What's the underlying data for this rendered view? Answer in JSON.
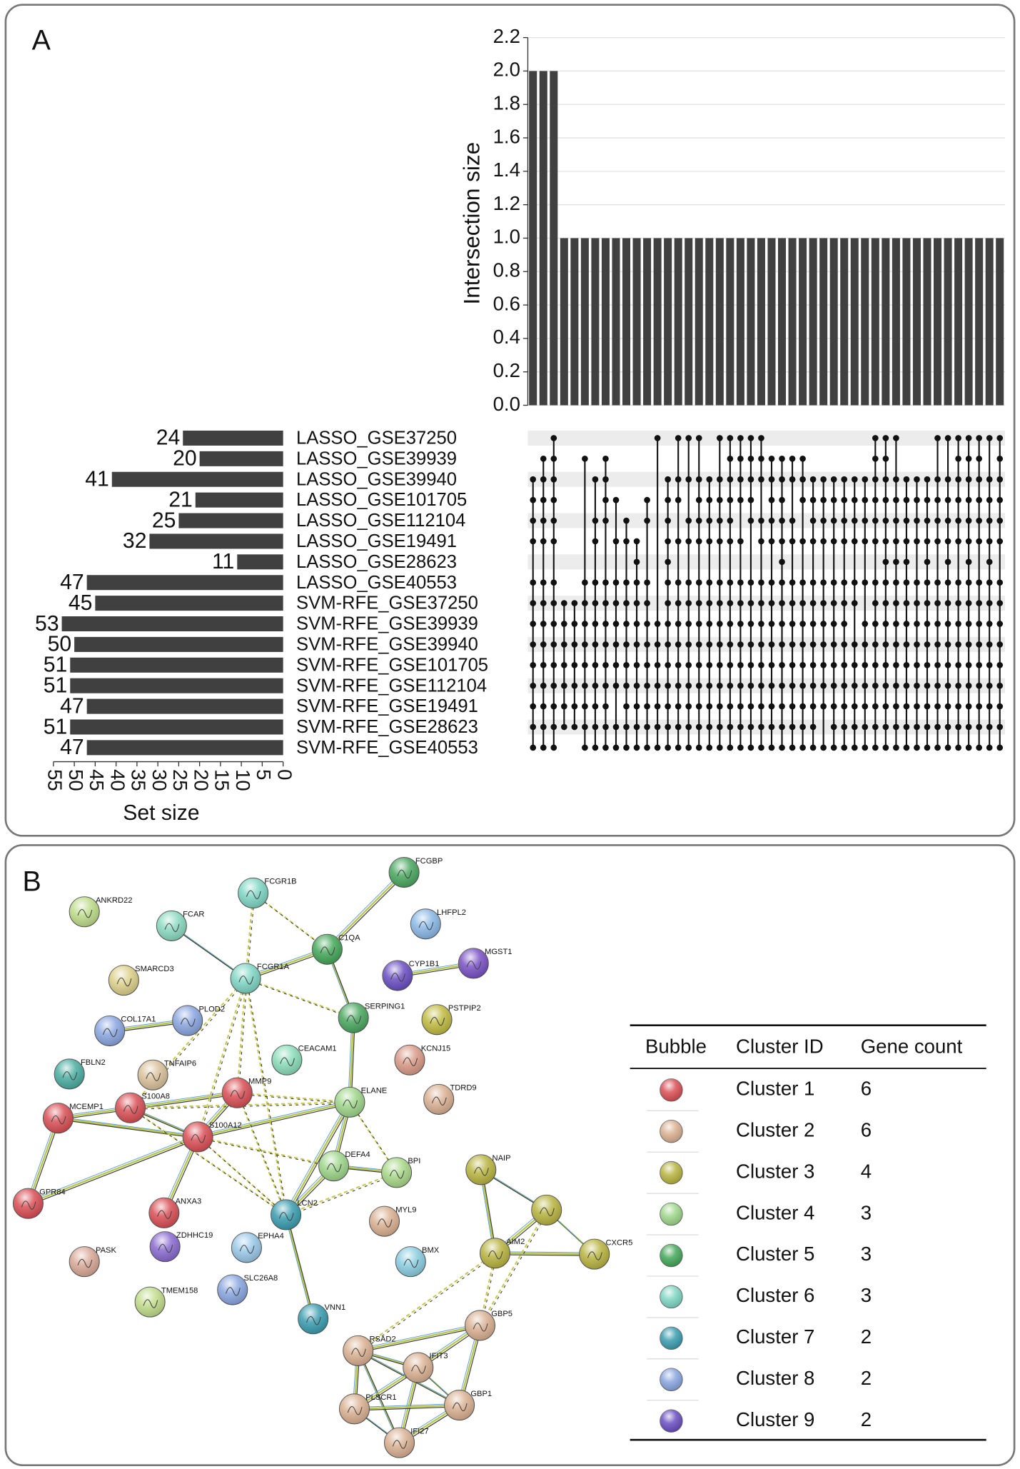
{
  "chart_data": {
    "type": "upset",
    "ylabel": "Intersection size",
    "xlabel": "Set size",
    "color": "#404040",
    "grid": true,
    "ylim": [
      0,
      2.2
    ],
    "yticks": [
      {
        "value": 0,
        "label": "0.0"
      },
      0.2,
      0.4,
      0.6,
      0.8,
      {
        "value": 1,
        "label": "1.0"
      },
      1.2,
      1.4,
      1.6,
      1.8,
      {
        "value": 2,
        "label": "2.0"
      },
      2.2
    ],
    "values": [
      2,
      2,
      2,
      1,
      1,
      1,
      1,
      1,
      1,
      1,
      1,
      1,
      1,
      1,
      1,
      1,
      1,
      1,
      1,
      1,
      1,
      1,
      1,
      1,
      1,
      1,
      1,
      1,
      1,
      1,
      1,
      1,
      1,
      1,
      1,
      1,
      1,
      1,
      1,
      1,
      1,
      1,
      1,
      1,
      1,
      1
    ],
    "sets": [
      "LASSO_GSE37250",
      "LASSO_GSE39939",
      "LASSO_GSE39940",
      "LASSO_GSE101705",
      "LASSO_GSE112104",
      "LASSO_GSE19491",
      "LASSO_GSE28623",
      "LASSO_GSE40553",
      "SVM-RFE_GSE37250",
      "SVM-RFE_GSE39939",
      "SVM-RFE_GSE39940",
      "SVM-RFE_GSE101705",
      "SVM-RFE_GSE112104",
      "SVM-RFE_GSE19491",
      "SVM-RFE_GSE28623",
      "SVM-RFE_GSE40553"
    ],
    "set_sizes": [
      24,
      20,
      41,
      21,
      25,
      32,
      11,
      47,
      45,
      53,
      50,
      51,
      51,
      47,
      51,
      47
    ],
    "xlim": [
      0,
      55
    ],
    "xticks": [
      0,
      5,
      10,
      15,
      20,
      25,
      30,
      35,
      40,
      45,
      50,
      55
    ],
    "intersections": [
      [
        2,
        3,
        4,
        5,
        7,
        8,
        9,
        10,
        11,
        12,
        13,
        14,
        15
      ],
      [
        1,
        2,
        3,
        4,
        5,
        7,
        8,
        9,
        10,
        11,
        12,
        13,
        14,
        15
      ],
      [
        0,
        1,
        2,
        3,
        4,
        5,
        7,
        8,
        9,
        10,
        11,
        12,
        13,
        14,
        15
      ],
      [
        8,
        9,
        10,
        11,
        12,
        13,
        14
      ],
      [
        8,
        9,
        10,
        11,
        12,
        13,
        14
      ],
      [
        1,
        7,
        8,
        9,
        10,
        11,
        12,
        13,
        14,
        15
      ],
      [
        2,
        4,
        5,
        7,
        8,
        9,
        10,
        11,
        12,
        13,
        14,
        15
      ],
      [
        1,
        2,
        3,
        4,
        7,
        8,
        9,
        10,
        11,
        12,
        13,
        14,
        15
      ],
      [
        3,
        5,
        7,
        8,
        9,
        10,
        11,
        12,
        14,
        15
      ],
      [
        4,
        5,
        7,
        8,
        9,
        10,
        11,
        12,
        13,
        14,
        15
      ],
      [
        5,
        6,
        7,
        8,
        9,
        10,
        11,
        12,
        13,
        14,
        15
      ],
      [
        3,
        4,
        7,
        8,
        9,
        10,
        11,
        12,
        13,
        14,
        15
      ],
      [
        0,
        9,
        10,
        11,
        12,
        13,
        14,
        15
      ],
      [
        2,
        3,
        4,
        5,
        6,
        7,
        8,
        9,
        10,
        11,
        12,
        13,
        14,
        15
      ],
      [
        0,
        2,
        3,
        5,
        7,
        8,
        9,
        10,
        11,
        12,
        13,
        14,
        15
      ],
      [
        0,
        2,
        4,
        5,
        7,
        8,
        9,
        10,
        11,
        12,
        13,
        14,
        15
      ],
      [
        0,
        2,
        3,
        4,
        5,
        7,
        8,
        9,
        10,
        11,
        12,
        13,
        14,
        15
      ],
      [
        2,
        3,
        4,
        5,
        7,
        8,
        9,
        10,
        11,
        12,
        13,
        14,
        15
      ],
      [
        0,
        2,
        3,
        4,
        5,
        7,
        8,
        9,
        10,
        11,
        12,
        13,
        14,
        15
      ],
      [
        0,
        1,
        2,
        3,
        4,
        5,
        7,
        8,
        9,
        10,
        11,
        12,
        13,
        14,
        15
      ],
      [
        0,
        1,
        2,
        3,
        5,
        7,
        8,
        9,
        10,
        11,
        12,
        13,
        14,
        15
      ],
      [
        0,
        1,
        2,
        3,
        4,
        7,
        8,
        9,
        10,
        11,
        12,
        13,
        14,
        15
      ],
      [
        0,
        1,
        2,
        4,
        5,
        7,
        8,
        9,
        10,
        11,
        12,
        13,
        14,
        15
      ],
      [
        1,
        2,
        3,
        4,
        5,
        7,
        8,
        9,
        10,
        11,
        12,
        13,
        14,
        15
      ],
      [
        1,
        2,
        3,
        4,
        5,
        6,
        7,
        8,
        9,
        10,
        11,
        12,
        13,
        14,
        15
      ],
      [
        1,
        2,
        4,
        5,
        7,
        8,
        9,
        10,
        11,
        12,
        13,
        14,
        15
      ],
      [
        1,
        2,
        3,
        5,
        7,
        8,
        9,
        10,
        11,
        12,
        13,
        14,
        15
      ],
      [
        2,
        3,
        4,
        5,
        7,
        8,
        9,
        10,
        11,
        12,
        13,
        14,
        15
      ],
      [
        2,
        3,
        4,
        5,
        7,
        8,
        9,
        10,
        11,
        12,
        13,
        15
      ],
      [
        2,
        3,
        4,
        5,
        7,
        8,
        9,
        10,
        11,
        12,
        13,
        14,
        15
      ],
      [
        2,
        3,
        4,
        5,
        7,
        8,
        9,
        10,
        11,
        12,
        13,
        14,
        15
      ],
      [
        2,
        3,
        4,
        5,
        7,
        8,
        10,
        11,
        12,
        13,
        14,
        15
      ],
      [
        2,
        3,
        4,
        5,
        7,
        9,
        10,
        11,
        12,
        13,
        14,
        15
      ],
      [
        0,
        1,
        2,
        3,
        4,
        5,
        7,
        8,
        9,
        10,
        11,
        12,
        13,
        14,
        15
      ],
      [
        0,
        1,
        2,
        3,
        4,
        5,
        6,
        7,
        8,
        9,
        10,
        11,
        12,
        13,
        14,
        15
      ],
      [
        0,
        2,
        3,
        4,
        5,
        6,
        7,
        8,
        9,
        10,
        11,
        12,
        13,
        14,
        15
      ],
      [
        2,
        3,
        4,
        5,
        6,
        7,
        8,
        9,
        10,
        11,
        12,
        13,
        14,
        15
      ],
      [
        2,
        3,
        4,
        5,
        7,
        8,
        9,
        10,
        11,
        12,
        13,
        14,
        15
      ],
      [
        2,
        3,
        4,
        5,
        6,
        7,
        8,
        9,
        10,
        11,
        12,
        13,
        14,
        15
      ],
      [
        0,
        2,
        3,
        4,
        5,
        7,
        8,
        9,
        10,
        11,
        12,
        13,
        14,
        15
      ],
      [
        0,
        2,
        3,
        4,
        5,
        6,
        7,
        8,
        9,
        10,
        11,
        12,
        13,
        14,
        15
      ],
      [
        0,
        1,
        2,
        3,
        4,
        5,
        7,
        8,
        9,
        10,
        11,
        12,
        13,
        14,
        15
      ],
      [
        0,
        1,
        2,
        3,
        4,
        5,
        6,
        7,
        8,
        9,
        10,
        11,
        12,
        13,
        14,
        15
      ],
      [
        0,
        1,
        2,
        3,
        4,
        5,
        7,
        8,
        9,
        10,
        11,
        12,
        13,
        14,
        15
      ],
      [
        0,
        2,
        3,
        4,
        5,
        6,
        7,
        8,
        9,
        10,
        11,
        12,
        13,
        14,
        15
      ],
      [
        0,
        1,
        2,
        3,
        4,
        5,
        7,
        8,
        9,
        10,
        11,
        12,
        13,
        14,
        15
      ]
    ]
  },
  "panel_labels": [
    "A",
    "B"
  ],
  "network": {
    "nodes": [
      {
        "label": "FCGBP",
        "color": "#4aa860"
      },
      {
        "label": "FCGR1B",
        "color": "#7ed6c4"
      },
      {
        "label": "ANKRD22",
        "color": "#bedc8a"
      },
      {
        "label": "FCAR",
        "color": "#8ad9c0"
      },
      {
        "label": "C1QA",
        "color": "#45a85a"
      },
      {
        "label": "LHFPL2",
        "color": "#8ab8e6"
      },
      {
        "label": "MGST1",
        "color": "#7a52c6"
      },
      {
        "label": "CYP1B1",
        "color": "#6a4fc2"
      },
      {
        "label": "SMARCD3",
        "color": "#ddd08a"
      },
      {
        "label": "FCGR1A",
        "color": "#7ed6c4"
      },
      {
        "label": "COL17A1",
        "color": "#8aa6e0"
      },
      {
        "label": "PLOD2",
        "color": "#8aa6e0"
      },
      {
        "label": "SERPING1",
        "color": "#4aa860"
      },
      {
        "label": "PSTPIP2",
        "color": "#c0bb40"
      },
      {
        "label": "CEACAM1",
        "color": "#8adcba"
      },
      {
        "label": "KCNJ15",
        "color": "#d99a88"
      },
      {
        "label": "FBLN2",
        "color": "#4aada0"
      },
      {
        "label": "TNFAIP6",
        "color": "#d9c09a"
      },
      {
        "label": "MMP9",
        "color": "#d94f55"
      },
      {
        "label": "MCEMP1",
        "color": "#d94f55"
      },
      {
        "label": "S100A8",
        "color": "#d94f55"
      },
      {
        "label": "ELANE",
        "color": "#9ed68a"
      },
      {
        "label": "TDRD9",
        "color": "#d9b091"
      },
      {
        "label": "S100A12",
        "color": "#d94f55"
      },
      {
        "label": "DEFA4",
        "color": "#9ed68a"
      },
      {
        "label": "BPI",
        "color": "#a8d888"
      },
      {
        "label": "NAIP",
        "color": "#b8b440"
      },
      {
        "label": "GPR84",
        "color": "#d94f55"
      },
      {
        "label": "ANXA3",
        "color": "#d94f55"
      },
      {
        "label": "LCN2",
        "color": "#3a9db0"
      },
      {
        "label": "MYL9",
        "color": "#d9b091"
      },
      {
        "label": "CXCR5",
        "color": "#b8b440"
      },
      {
        "label": "AIM2",
        "color": "#b8b440"
      },
      {
        "label": "ZDHHC19",
        "color": "#8a6ad0"
      },
      {
        "label": "EPHA4",
        "color": "#9ac8e8"
      },
      {
        "label": "BMX",
        "color": "#8acde0"
      },
      {
        "label": "PASK",
        "color": "#d9a898"
      },
      {
        "label": "SLC26A8",
        "color": "#8aa6e0"
      },
      {
        "label": "TMEM158",
        "color": "#c0dc8a"
      },
      {
        "label": "VNN1",
        "color": "#3a9db0"
      },
      {
        "label": "RSAD2",
        "color": "#d9b091"
      },
      {
        "label": "GBP5",
        "color": "#d9b091"
      },
      {
        "label": "IFIT3",
        "color": "#d9b091"
      },
      {
        "label": "GBP1",
        "color": "#d9b091"
      },
      {
        "label": "PLSCR1",
        "color": "#d9b091"
      },
      {
        "label": "IFI27",
        "color": "#d9b091"
      },
      {
        "label": null,
        "color": "#b8b440"
      }
    ],
    "edges": [
      [
        0,
        4
      ],
      [
        3,
        9
      ],
      [
        4,
        9
      ],
      [
        4,
        12
      ],
      [
        6,
        7
      ],
      [
        10,
        11
      ],
      [
        19,
        20
      ],
      [
        19,
        23
      ],
      [
        19,
        27
      ],
      [
        27,
        23
      ],
      [
        20,
        23
      ],
      [
        20,
        18
      ],
      [
        23,
        18
      ],
      [
        23,
        28
      ],
      [
        21,
        24
      ],
      [
        24,
        25
      ],
      [
        29,
        39
      ],
      [
        26,
        32
      ],
      [
        26,
        46
      ],
      [
        46,
        32
      ],
      [
        46,
        31
      ],
      [
        32,
        31
      ],
      [
        41,
        40
      ],
      [
        41,
        42
      ],
      [
        41,
        43
      ],
      [
        40,
        42
      ],
      [
        40,
        44
      ],
      [
        40,
        43
      ],
      [
        40,
        45
      ],
      [
        42,
        43
      ],
      [
        42,
        44
      ],
      [
        42,
        45
      ],
      [
        43,
        44
      ],
      [
        43,
        45
      ],
      [
        44,
        45
      ],
      [
        12,
        21
      ],
      [
        23,
        21
      ],
      [
        21,
        29
      ],
      [
        24,
        29
      ]
    ],
    "dashed_edges": [
      [
        1,
        4
      ],
      [
        1,
        9
      ],
      [
        9,
        12
      ],
      [
        9,
        18
      ],
      [
        9,
        29
      ],
      [
        9,
        23
      ],
      [
        20,
        21
      ],
      [
        18,
        21
      ],
      [
        18,
        29
      ],
      [
        23,
        24
      ],
      [
        23,
        29
      ],
      [
        20,
        29
      ],
      [
        21,
        25
      ],
      [
        25,
        29
      ],
      [
        32,
        40
      ],
      [
        46,
        41
      ],
      [
        32,
        41
      ],
      [
        9,
        20
      ]
    ]
  },
  "table": {
    "columns": [
      "Bubble",
      "Cluster ID",
      "Gene count"
    ],
    "rows": [
      {
        "cluster": "Cluster 1",
        "gene_count": 6,
        "color": "#d94f55"
      },
      {
        "cluster": "Cluster 2",
        "gene_count": 6,
        "color": "#d9b091"
      },
      {
        "cluster": "Cluster 3",
        "gene_count": 4,
        "color": "#b8b440"
      },
      {
        "cluster": "Cluster 4",
        "gene_count": 3,
        "color": "#9ed68a"
      },
      {
        "cluster": "Cluster 5",
        "gene_count": 3,
        "color": "#45a85a"
      },
      {
        "cluster": "Cluster 6",
        "gene_count": 3,
        "color": "#7ed6c4"
      },
      {
        "cluster": "Cluster 7",
        "gene_count": 2,
        "color": "#3a9db0"
      },
      {
        "cluster": "Cluster 8",
        "gene_count": 2,
        "color": "#8aa6e0"
      },
      {
        "cluster": "Cluster 9",
        "gene_count": 2,
        "color": "#6a4fc2"
      }
    ]
  }
}
